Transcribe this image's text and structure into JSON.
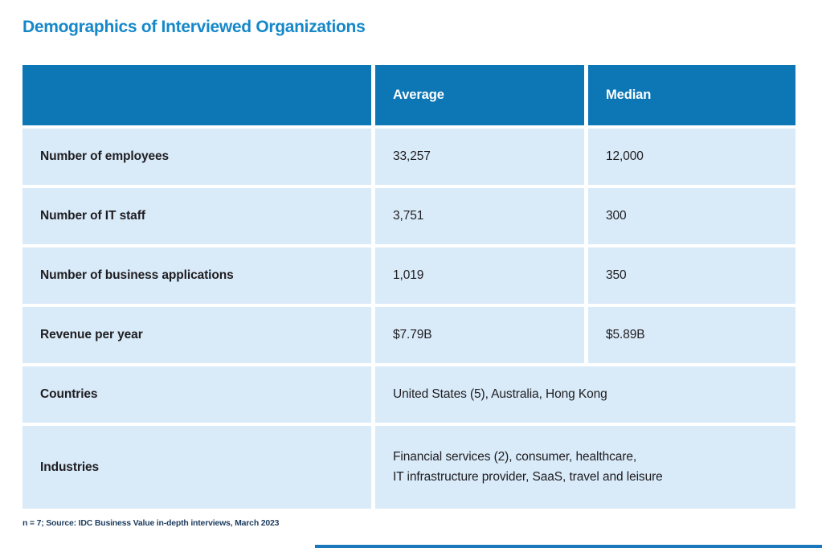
{
  "title": "Demographics of Interviewed Organizations",
  "footnote": "n = 7; Source: IDC Business Value in-depth interviews, March 2023",
  "colors": {
    "title_text": "#1588c9",
    "header_bg": "#0d76b5",
    "header_text": "#ffffff",
    "row_bg": "#d9eaf8",
    "body_text": "#1e1d21",
    "footnote_text": "#1d3c5e",
    "accent_bar": "#1b77bb"
  },
  "table": {
    "columns": [
      "",
      "Average",
      "Median"
    ],
    "rows": [
      {
        "label": "Number of employees",
        "average": "33,257",
        "median": "12,000"
      },
      {
        "label": "Number of IT staff",
        "average": "3,751",
        "median": "300"
      },
      {
        "label": "Number of business applications",
        "average": "1,019",
        "median": "350"
      },
      {
        "label": "Revenue per year",
        "average": "$7.79B",
        "median": "$5.89B"
      },
      {
        "label": "Countries",
        "value": "United States (5), Australia, Hong Kong"
      },
      {
        "label": "Industries",
        "value": "Financial services (2), consumer, healthcare,\nIT infrastructure provider, SaaS, travel and leisure"
      }
    ]
  }
}
